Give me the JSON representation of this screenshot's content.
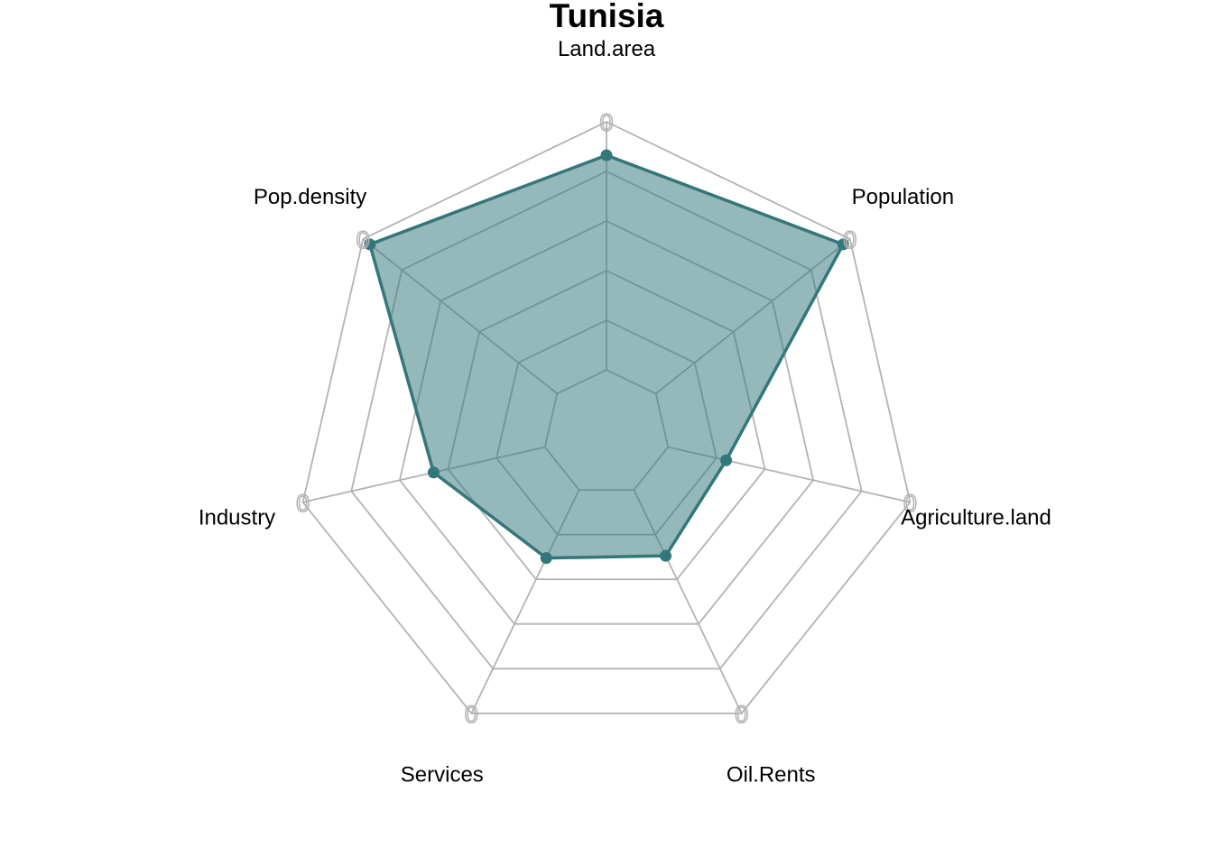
{
  "chart_data": {
    "type": "radar",
    "title": "Tunisia",
    "axes": [
      "Land.area",
      "Population",
      "Agriculture.land",
      "Oil.Rents",
      "Services",
      "Industry",
      "Pop.density"
    ],
    "tick_label": "0",
    "grid_levels": 6,
    "series": [
      {
        "values": [
          0.865,
          0.965,
          0.24,
          0.295,
          0.305,
          0.46,
          0.965
        ]
      }
    ],
    "colors": {
      "line": "#33777a",
      "fill": "#33777a",
      "grid": "#b3b3b3",
      "inner_grid": "#7f9fa0"
    }
  }
}
